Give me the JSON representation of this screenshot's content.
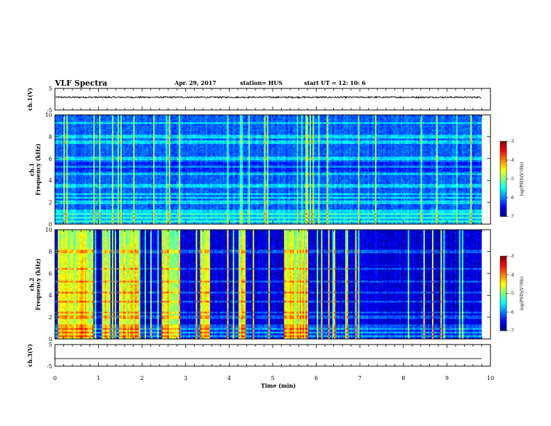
{
  "header": {
    "title": "VLF Spectra",
    "date": "Apr. 29, 2017",
    "station": "station= HUS",
    "start_time": "start  UT =   12: 10: 6"
  },
  "colors": {
    "background": "#ffffff",
    "axis": "#000000",
    "spectrogram_low": "#000033",
    "spectrogram_high": "#ff0000"
  },
  "chart_data": [
    {
      "type": "line",
      "name": "ch.1(V)",
      "ylabel": "ch.1(V)",
      "ylim": [
        -5,
        5
      ],
      "yticks": [
        "5",
        "-5"
      ],
      "xlim": [
        0,
        10
      ],
      "series": [
        {
          "values": "noise band near +0.9 V, amplitude approx 0.3 V"
        }
      ],
      "baseline": 0.9
    },
    {
      "type": "heatmap",
      "name": "ch.1 spectrogram",
      "ylabel": "ch.1\nFrequency (kHz)",
      "ylabel_lines": [
        "ch.1",
        "Frequency (kHz)"
      ],
      "ylim": [
        0,
        10
      ],
      "yticks": [
        "0",
        "2",
        "4",
        "6",
        "8",
        "10"
      ],
      "xlim": [
        0,
        10
      ],
      "xrange_data_min": 9.8,
      "horizontal_lines_khz": [
        0.3,
        0.6,
        1.0,
        1.2,
        2.0,
        2.4,
        2.8,
        3.4,
        3.6,
        4.6,
        5.2,
        6.0,
        7.5,
        8.0,
        9.3
      ],
      "colorbar": {
        "label": "log(PSD)(V²/Hz)",
        "range": [
          -7,
          -3
        ],
        "ticks": [
          "-3",
          "-4",
          "-5",
          "-6",
          "-7"
        ]
      }
    },
    {
      "type": "heatmap",
      "name": "ch.2 spectrogram",
      "ylabel": "ch.2\nFrequency (kHz)",
      "ylabel_lines": [
        "ch.2",
        "Frequency (kHz)"
      ],
      "ylim": [
        0,
        10
      ],
      "yticks": [
        "0",
        "2",
        "4",
        "6",
        "8",
        "10"
      ],
      "xlim": [
        0,
        10
      ],
      "xrange_data_min": 9.8,
      "bright_bands_min": [
        [
          0.05,
          0.85
        ],
        [
          1.05,
          1.25
        ],
        [
          1.45,
          1.9
        ],
        [
          2.45,
          2.85
        ],
        [
          3.3,
          3.55
        ],
        [
          4.2,
          4.35
        ],
        [
          5.25,
          5.75
        ]
      ],
      "colorbar": {
        "label": "log(PSD)(V²/Hz)",
        "range": [
          -7,
          -3
        ],
        "ticks": [
          "-3",
          "-4",
          "-5",
          "-6",
          "-7"
        ]
      }
    },
    {
      "type": "line",
      "name": "ch.3(V)",
      "ylabel": "ch.3(V)",
      "ylim": [
        -5,
        5
      ],
      "yticks": [
        "5",
        "-5"
      ],
      "xlim": [
        0,
        10
      ],
      "series": [
        {
          "values": "flat line at -1.5 V"
        }
      ],
      "baseline": -1.5
    }
  ],
  "x_axis": {
    "label": "Time  (min)",
    "ticks": [
      "0",
      "1",
      "2",
      "3",
      "4",
      "5",
      "6",
      "7",
      "8",
      "9",
      "10"
    ]
  }
}
